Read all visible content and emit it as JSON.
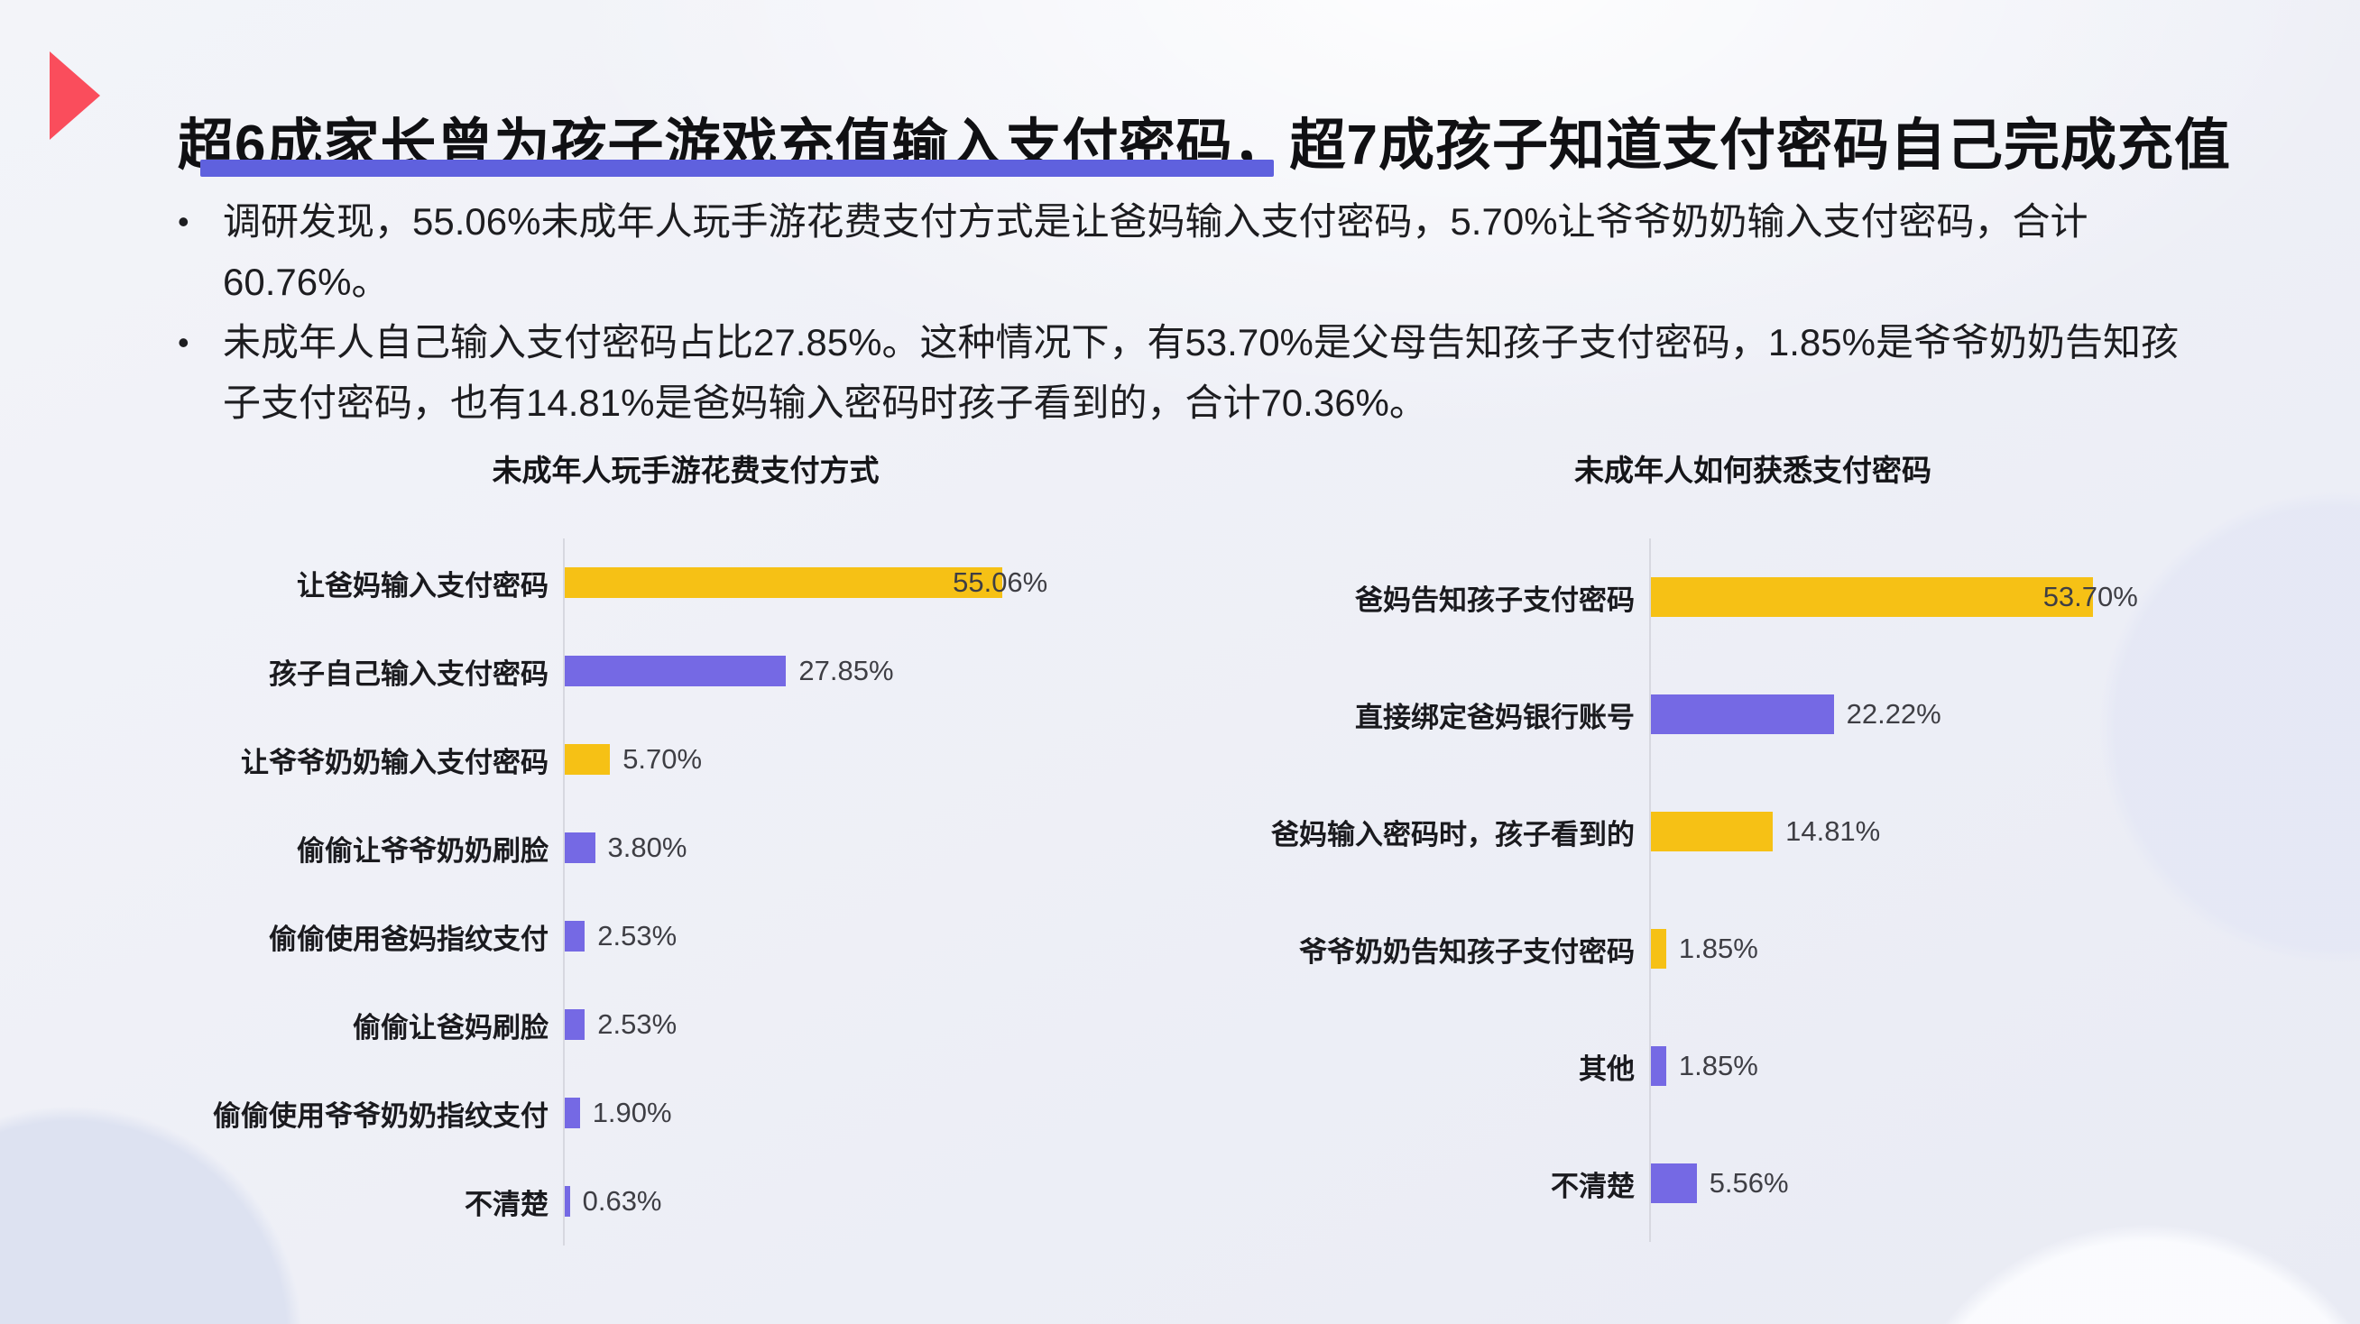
{
  "slide": {
    "title": "超6成家长曾为孩子游戏充值输入支付密码，超7成孩子知道支付密码自己完成充值",
    "bullets": [
      "调研发现，55.06%未成年人玩手游花费支付方式是让爸妈输入支付密码，5.70%让爷爷奶奶输入支付密码，合计60.76%。",
      "未成年人自己输入支付密码占比27.85%。这种情况下，有53.70%是父母告知孩子支付密码，1.85%是爷爷奶奶告知孩子支付密码，也有14.81%是爸妈输入密码时孩子看到的，合计70.36%。"
    ]
  },
  "colors": {
    "gold": "#F6C115",
    "purple": "#7569E4",
    "underline": "#5F61DE",
    "arrow_red": "#FA4D5C"
  },
  "chart_data": [
    {
      "type": "bar",
      "orientation": "horizontal",
      "title": "未成年人玩手游花费支付方式",
      "unit": "%",
      "grid": false,
      "legend": "none",
      "xlim": [
        0,
        62
      ],
      "categories": [
        "让爸妈输入支付密码",
        "孩子自己输入支付密码",
        "让爷爷奶奶输入支付密码",
        "偷偷让爷爷奶奶刷脸",
        "偷偷使用爸妈指纹支付",
        "偷偷让爸妈刷脸",
        "偷偷使用爷爷奶奶指纹支付",
        "不清楚"
      ],
      "values": [
        55.06,
        27.85,
        5.7,
        3.8,
        2.53,
        2.53,
        1.9,
        0.63
      ],
      "labels": [
        "55.06%",
        "27.85%",
        "5.70%",
        "3.80%",
        "2.53%",
        "2.53%",
        "1.90%",
        "0.63%"
      ],
      "bar_colors": [
        "gold",
        "purple",
        "gold",
        "purple",
        "purple",
        "purple",
        "purple",
        "purple"
      ]
    },
    {
      "type": "bar",
      "orientation": "horizontal",
      "title": "未成年人如何获悉支付密码",
      "unit": "%",
      "grid": false,
      "legend": "none",
      "xlim": [
        0,
        60
      ],
      "categories": [
        "爸妈告知孩子支付密码",
        "直接绑定爸妈银行账号",
        "爸妈输入密码时，孩子看到的",
        "爷爷奶奶告知孩子支付密码",
        "其他",
        "不清楚"
      ],
      "values": [
        53.7,
        22.22,
        14.81,
        1.85,
        1.85,
        5.56
      ],
      "labels": [
        "53.70%",
        "22.22%",
        "14.81%",
        "1.85%",
        "1.85%",
        "5.56%"
      ],
      "bar_colors": [
        "gold",
        "purple",
        "gold",
        "gold",
        "purple",
        "purple"
      ]
    }
  ]
}
